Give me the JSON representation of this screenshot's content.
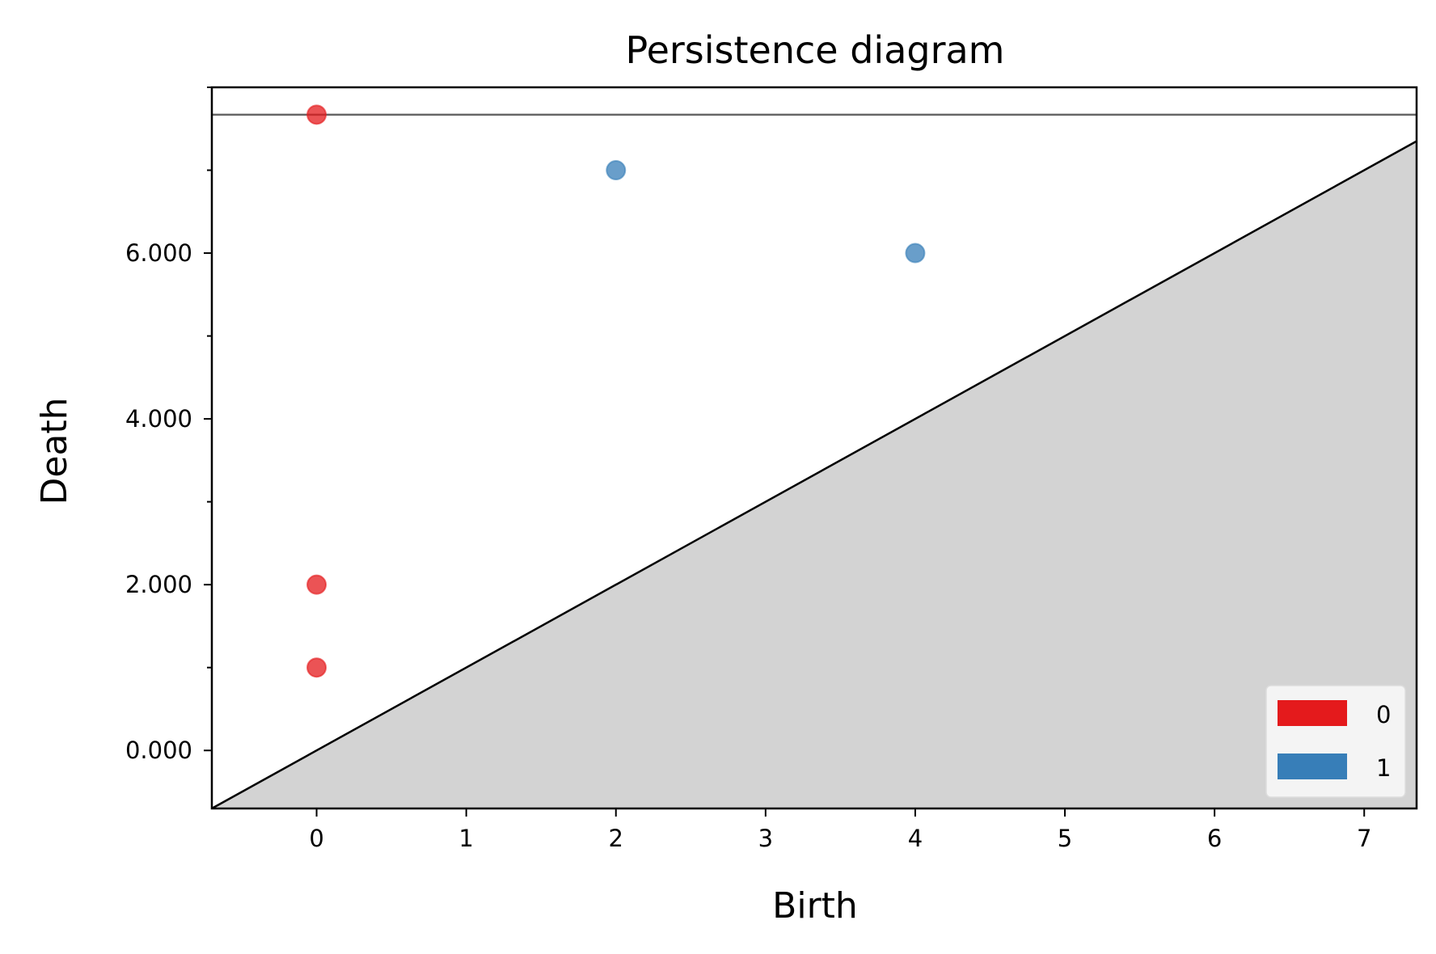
{
  "chart_data": {
    "type": "scatter",
    "title": "Persistence diagram",
    "xlabel": "Birth",
    "ylabel": "Death",
    "xlim": [
      -0.7,
      7.35
    ],
    "ylim": [
      -0.7,
      8.0
    ],
    "x_ticks": [
      0,
      1,
      2,
      3,
      4,
      5,
      6,
      7
    ],
    "x_tick_labels": [
      "0",
      "1",
      "2",
      "3",
      "4",
      "5",
      "6",
      "7"
    ],
    "y_major_ticks": [
      0,
      2,
      4,
      6
    ],
    "y_tick_labels": [
      "0.000",
      "2.000",
      "4.000",
      "6.000"
    ],
    "y_minor_ticks": [
      1,
      3,
      5,
      7,
      8
    ],
    "infinity_line": 7.67,
    "diagonal": true,
    "grid": false,
    "legend_position": "lower-right",
    "series": [
      {
        "name": "0",
        "color": "#e41a1c",
        "points": [
          [
            0,
            7.67
          ],
          [
            0,
            2
          ],
          [
            0,
            1
          ]
        ]
      },
      {
        "name": "1",
        "color": "#377eb8",
        "points": [
          [
            2,
            7
          ],
          [
            4,
            6
          ]
        ]
      }
    ],
    "colors": {
      "diagonal_fill": "#d3d3d3",
      "infinity_line": "#666666",
      "legend_bg": "#f4f4f4"
    }
  }
}
